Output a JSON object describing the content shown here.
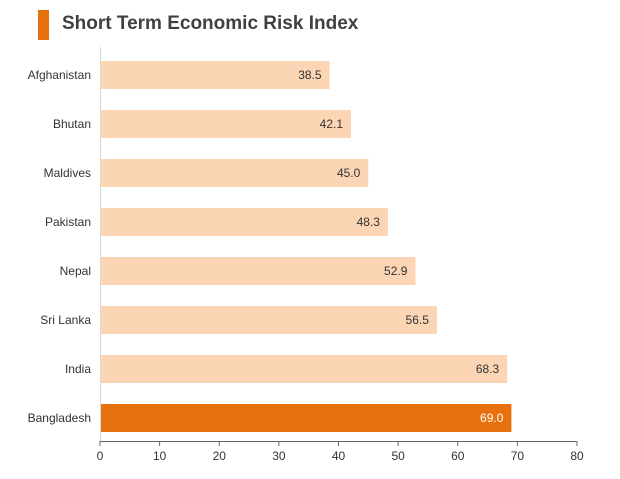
{
  "chart_data": {
    "type": "bar",
    "orientation": "horizontal",
    "title": "Short Term Economic Risk Index",
    "categories": [
      "Afghanistan",
      "Bhutan",
      "Maldives",
      "Pakistan",
      "Nepal",
      "Sri Lanka",
      "India",
      "Bangladesh"
    ],
    "values": [
      38.5,
      42.1,
      45.0,
      48.3,
      52.9,
      56.5,
      68.3,
      69.0
    ],
    "value_labels": [
      "38.5",
      "42.1",
      "45.0",
      "48.3",
      "52.9",
      "56.5",
      "68.3",
      "69.0"
    ],
    "highlight": "Bangladesh",
    "xlim": [
      0,
      80
    ],
    "xticks": [
      0,
      10,
      20,
      30,
      40,
      50,
      60,
      70,
      80
    ],
    "grid": false,
    "legend": "none",
    "colors": {
      "bar": "#fcd5b5",
      "highlight_bar": "#e8710f",
      "accent": "#e8710f",
      "label": "#333333",
      "highlight_label": "#ffffff",
      "axis": "#666666"
    }
  }
}
